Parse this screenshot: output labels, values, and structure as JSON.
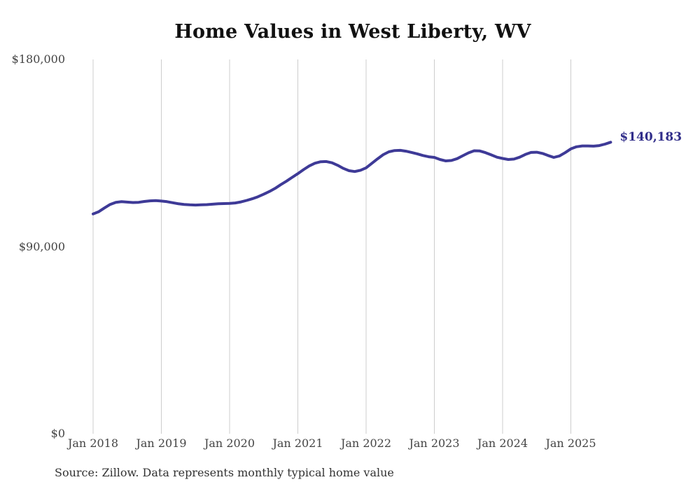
{
  "title": "Home Values in West Liberty, WV",
  "source_note": "Source: Zillow. Data represents monthly typical home value",
  "end_label": "$140,183",
  "colors": {
    "line": "#3e3a97",
    "end_label": "#312e8a",
    "grid": "#cccccc",
    "title": "#111111",
    "tick_text": "#444444",
    "source_text": "#333333",
    "background": "#ffffff"
  },
  "chart_data": {
    "type": "line",
    "title": "Home Values in West Liberty, WV",
    "xlabel": "",
    "ylabel": "",
    "grid": "vertical-only",
    "legend": "none",
    "y_axis": {
      "min": 0,
      "max": 180000
    },
    "y_ticks": [
      {
        "label": "$180,000",
        "value": 180000
      },
      {
        "label": "$90,000",
        "value": 90000
      },
      {
        "label": "$0",
        "value": 0
      }
    ],
    "x_ticks": [
      {
        "label": "Jan 2018",
        "month_index": 0
      },
      {
        "label": "Jan 2019",
        "month_index": 12
      },
      {
        "label": "Jan 2020",
        "month_index": 24
      },
      {
        "label": "Jan 2021",
        "month_index": 36
      },
      {
        "label": "Jan 2022",
        "month_index": 48
      },
      {
        "label": "Jan 2023",
        "month_index": 60
      },
      {
        "label": "Jan 2024",
        "month_index": 72
      },
      {
        "label": "Jan 2025",
        "month_index": 84
      }
    ],
    "series": [
      {
        "name": "Typical home value",
        "start_month": "2018-01",
        "end_month": "2025-08",
        "final_value": 140183,
        "values": [
          105700,
          106800,
          108600,
          110300,
          111300,
          111600,
          111400,
          111200,
          111300,
          111700,
          112000,
          112100,
          111900,
          111600,
          111100,
          110600,
          110300,
          110100,
          110000,
          110100,
          110200,
          110400,
          110600,
          110700,
          110800,
          111000,
          111500,
          112200,
          113000,
          114000,
          115200,
          116500,
          118000,
          119800,
          121500,
          123300,
          125100,
          127000,
          128800,
          130100,
          130800,
          130900,
          130300,
          129100,
          127600,
          126500,
          126100,
          126700,
          127900,
          130000,
          132200,
          134200,
          135600,
          136200,
          136300,
          135900,
          135300,
          134600,
          133800,
          133200,
          132900,
          131900,
          131200,
          131400,
          132300,
          133700,
          135100,
          136100,
          136000,
          135200,
          134100,
          133000,
          132400,
          131900,
          132100,
          133000,
          134300,
          135300,
          135400,
          134800,
          133800,
          132900,
          133600,
          135200,
          137000,
          138000,
          138400,
          138400,
          138300,
          138600,
          139300,
          140183
        ]
      }
    ]
  }
}
